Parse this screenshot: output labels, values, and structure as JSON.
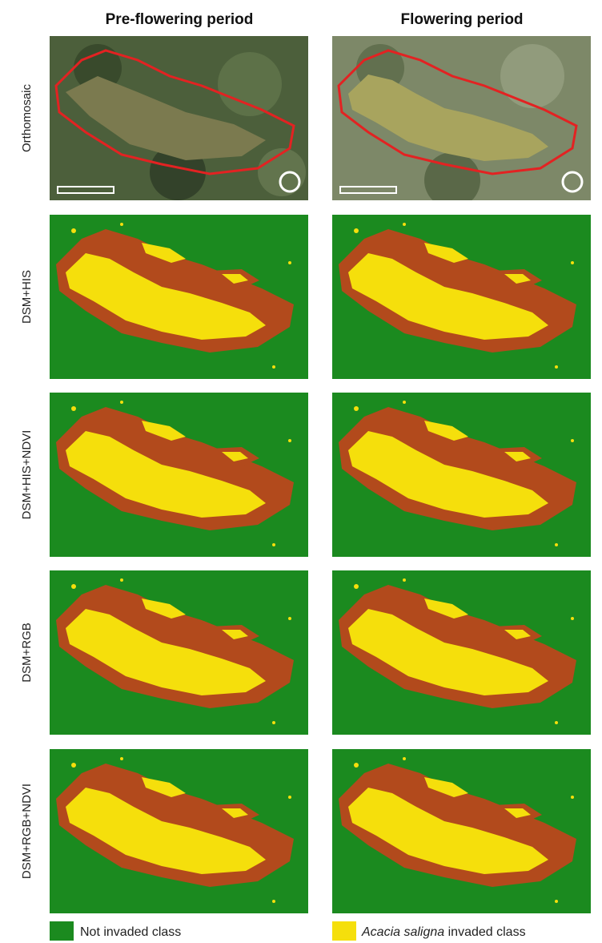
{
  "header": {
    "columns": [
      "Pre-flowering period",
      "Flowering period"
    ]
  },
  "rows": [
    "Orthomosaic",
    "DSM+HIS",
    "DSM+HIS+NDVI",
    "DSM+RGB",
    "DSM+RGB+NDVI"
  ],
  "legend": {
    "not_invaded": "Not invaded class",
    "invaded_species": "Acacia saligna",
    "invaded_suffix": " invaded class"
  }
}
